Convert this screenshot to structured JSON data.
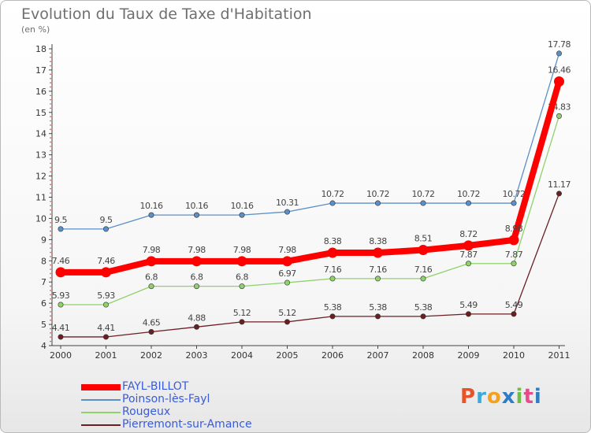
{
  "title": "Evolution du Taux de Taxe d'Habitation",
  "subtitle": "(en %)",
  "logo": {
    "text": "Proxiti",
    "letters": [
      "P",
      "r",
      "o",
      "x",
      "i",
      "t",
      "i"
    ],
    "colors": [
      "#e8542a",
      "#3ea9d7",
      "#f4a21b",
      "#2e7dc2",
      "#6dbf43",
      "#e64b8c",
      "#2e7dc2"
    ]
  },
  "chart_data": {
    "type": "line",
    "x": [
      "2000",
      "2001",
      "2002",
      "2003",
      "2004",
      "2005",
      "2006",
      "2007",
      "2008",
      "2009",
      "2010",
      "2011"
    ],
    "ylim": [
      4,
      18
    ],
    "yticks": [
      "4",
      "5",
      "6",
      "7",
      "8",
      "9",
      "10",
      "11",
      "12",
      "13",
      "14",
      "15",
      "16",
      "17",
      "18"
    ],
    "grid": false,
    "legend_position": "bottom-left",
    "series": [
      {
        "name": "Pierremont-sur-Amance",
        "color": "#6b1f23",
        "values": [
          4.41,
          4.41,
          4.65,
          4.88,
          5.12,
          5.12,
          5.38,
          5.38,
          5.38,
          5.49,
          5.49,
          11.17
        ],
        "labels": [
          "4.41",
          "4.41",
          "4.65",
          "4.88",
          "5.12",
          "5.12",
          "5.38",
          "5.38",
          "5.38",
          "5.49",
          "5.49",
          "11.17"
        ]
      },
      {
        "name": "Rougeux",
        "color": "#8fd16a",
        "values": [
          5.93,
          5.93,
          6.8,
          6.8,
          6.8,
          6.97,
          7.16,
          7.16,
          7.16,
          7.87,
          7.87,
          14.83
        ],
        "labels": [
          "5.93",
          "5.93",
          "6.8",
          "6.8",
          "6.8",
          "6.97",
          "7.16",
          "7.16",
          "7.16",
          "7.87",
          "7.87",
          "14.83"
        ]
      },
      {
        "name": "Poinson-lès-Fayl",
        "color": "#5b8fc7",
        "values": [
          9.5,
          9.5,
          10.16,
          10.16,
          10.16,
          10.31,
          10.72,
          10.72,
          10.72,
          10.72,
          10.72,
          17.78
        ],
        "labels": [
          "9.5",
          "9.5",
          "10.16",
          "10.16",
          "10.16",
          "10.31",
          "10.72",
          "10.72",
          "10.72",
          "10.72",
          "10.72",
          "17.78"
        ]
      },
      {
        "name": "FAYL-BILLOT",
        "color": "#ff0000",
        "values": [
          7.46,
          7.46,
          7.98,
          7.98,
          7.98,
          7.98,
          8.38,
          8.38,
          8.51,
          8.72,
          8.98,
          16.46
        ],
        "labels": [
          "7.46",
          "7.46",
          "7.98",
          "7.98",
          "7.98",
          "7.98",
          "8.38",
          "8.38",
          "8.51",
          "8.72",
          "8.98",
          "16.46"
        ]
      }
    ]
  },
  "legend": [
    {
      "name": "FAYL-BILLOT",
      "color": "#ff0000",
      "thick": true
    },
    {
      "name": "Poinson-lès-Fayl",
      "color": "#5b8fc7",
      "thick": false
    },
    {
      "name": "Rougeux",
      "color": "#8fd16a",
      "thick": false
    },
    {
      "name": "Pierremont-sur-Amance",
      "color": "#6b1f23",
      "thick": false
    }
  ]
}
